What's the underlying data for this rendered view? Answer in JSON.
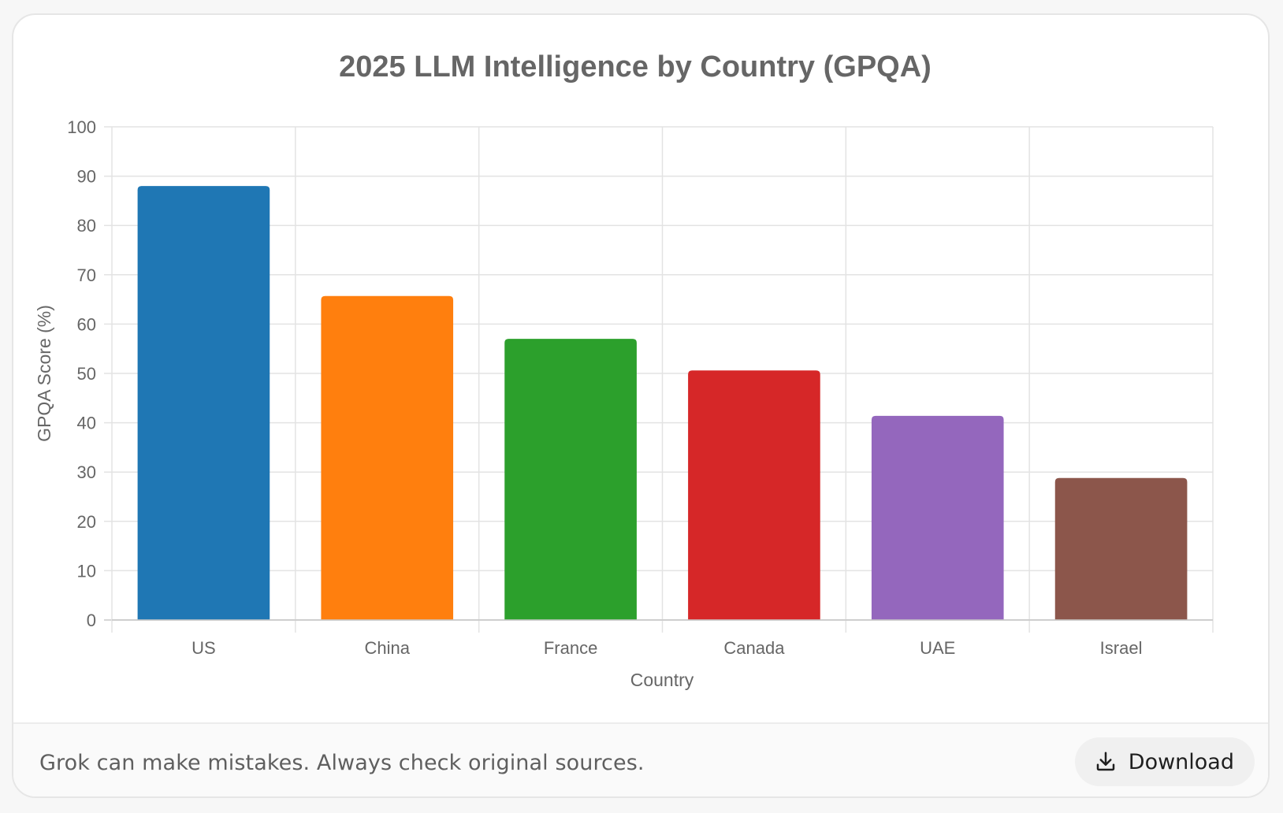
{
  "chart_data": {
    "type": "bar",
    "title": "2025 LLM Intelligence by Country (GPQA)",
    "xlabel": "Country",
    "ylabel": "GPQA Score (%)",
    "categories": [
      "US",
      "China",
      "France",
      "Canada",
      "UAE",
      "Israel"
    ],
    "values": [
      88,
      65.7,
      57,
      50.6,
      41.4,
      28.8
    ],
    "colors": [
      "#1f77b4",
      "#ff7f0e",
      "#2ca02c",
      "#d62728",
      "#9467bd",
      "#8c564b"
    ],
    "ylim": [
      0,
      100
    ],
    "yticks": [
      "0",
      "10",
      "20",
      "30",
      "40",
      "50",
      "60",
      "70",
      "80",
      "90",
      "100"
    ],
    "grid": true,
    "legend": "none"
  },
  "footer": {
    "disclaimer": "Grok can make mistakes. Always check original sources.",
    "download_label": "Download",
    "download_icon": "download-icon"
  }
}
